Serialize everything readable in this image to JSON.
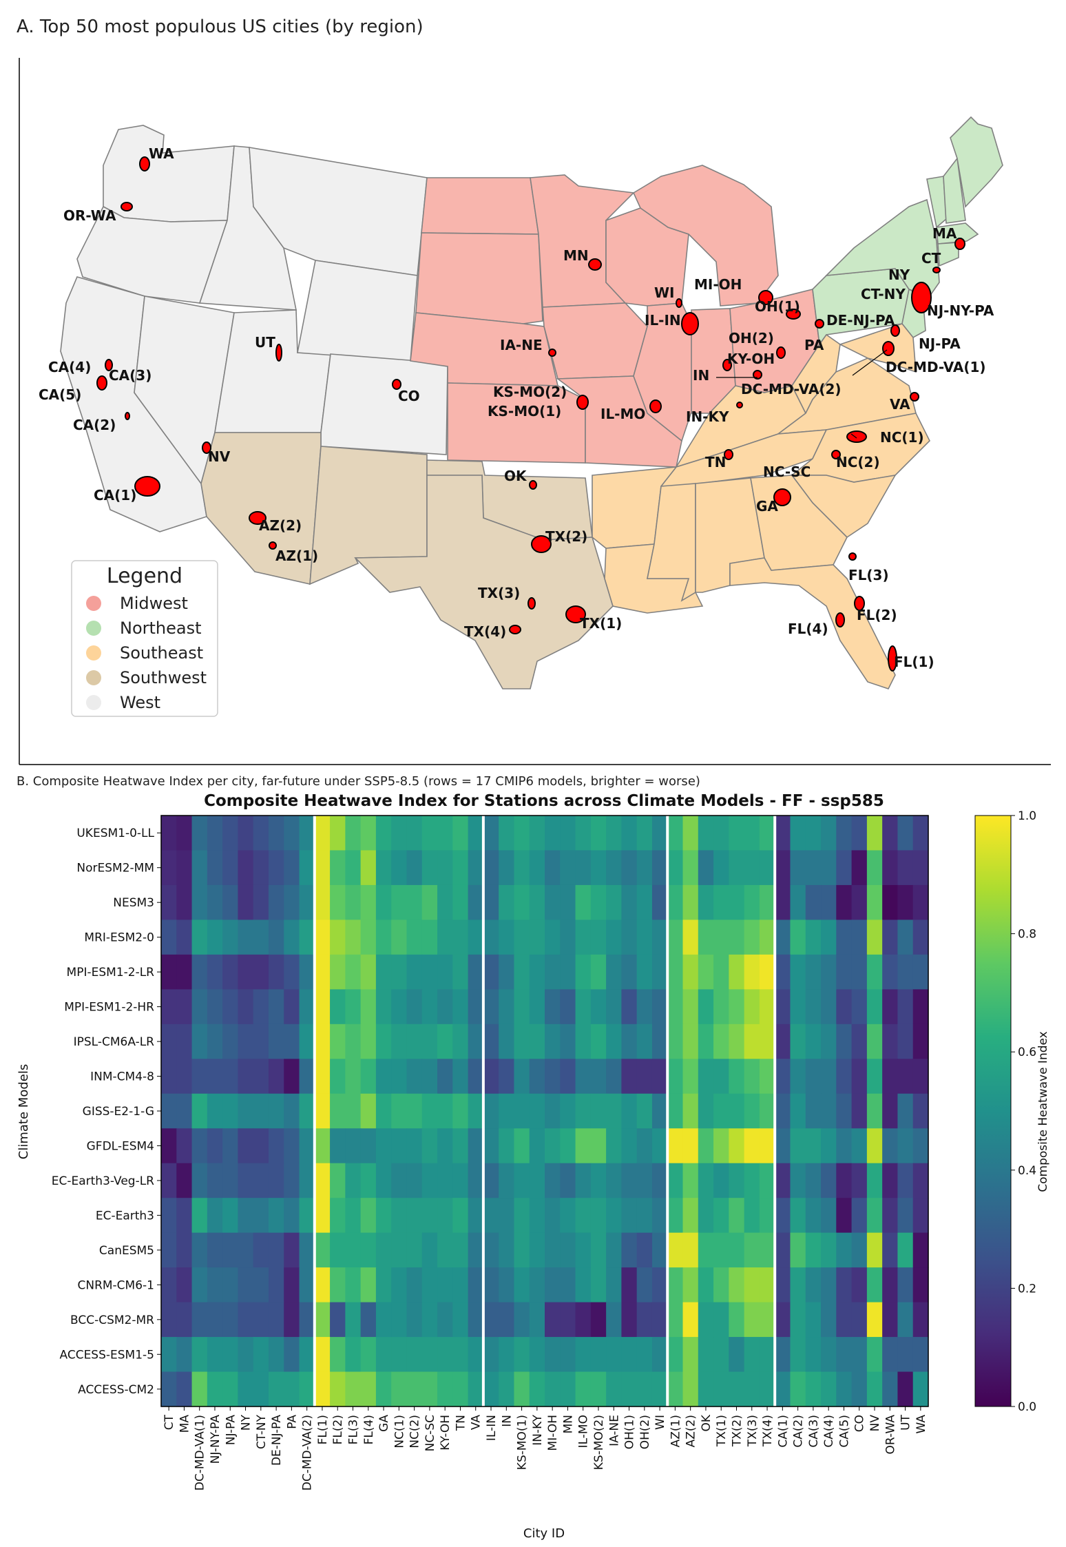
{
  "panel_a": {
    "title": "A. Top 50 most populous US cities (by region)",
    "legend": {
      "title": "Legend",
      "items": [
        {
          "label": "Midwest",
          "color": "#f4a09a"
        },
        {
          "label": "Northeast",
          "color": "#b5e0b0"
        },
        {
          "label": "Southeast",
          "color": "#fdd49a"
        },
        {
          "label": "Southwest",
          "color": "#dcc9a6"
        },
        {
          "label": "West",
          "color": "#ececec"
        }
      ]
    },
    "region_colors": {
      "Midwest": "#f8b5ad",
      "Northeast": "#cbe8c6",
      "Southeast": "#fdd9a6",
      "Southwest": "#e4d5bb",
      "West": "#f0f0f0"
    },
    "city_color": "#ff0000",
    "city_labels": [
      "WA",
      "OR-WA",
      "UT",
      "CA(4)",
      "CA(3)",
      "CA(5)",
      "CA(2)",
      "NV",
      "CA(1)",
      "AZ(2)",
      "AZ(1)",
      "CO",
      "MN",
      "WI",
      "MI-OH",
      "IL-IN",
      "IA-NE",
      "KS-MO(2)",
      "KS-MO(1)",
      "IL-MO",
      "OH(1)",
      "OH(2)",
      "KY-OH",
      "IN",
      "DC-MD-VA(2)",
      "IN-KY",
      "PA",
      "DE-NJ-PA",
      "MA",
      "CT",
      "NY",
      "CT-NY",
      "NJ-NY-PA",
      "NJ-PA",
      "DC-MD-VA(1)",
      "VA",
      "NC(1)",
      "NC(2)",
      "TN",
      "NC-SC",
      "GA",
      "OK",
      "TX(2)",
      "TX(3)",
      "TX(4)",
      "TX(1)",
      "FL(3)",
      "FL(2)",
      "FL(4)",
      "FL(1)"
    ]
  },
  "panel_b": {
    "caption": "B. Composite Heatwave Index per city, far-future under SSP5-8.5 (rows = 17 CMIP6 models, brighter = worse)"
  },
  "chart_data": {
    "type": "heatmap",
    "title": "Composite Heatwave Index for Stations across Climate Models - FF - ssp585",
    "xlabel": "City ID",
    "ylabel": "Climate Models",
    "colorbar": {
      "label": "Composite Heatwave Index",
      "range": [
        0.0,
        1.0
      ],
      "ticks": [
        "0.0",
        "0.2",
        "0.4",
        "0.6",
        "0.8",
        "1.0"
      ],
      "colormap": "viridis"
    },
    "rows": [
      "UKESM1-0-LL",
      "NorESM2-MM",
      "NESM3",
      "MRI-ESM2-0",
      "MPI-ESM1-2-LR",
      "MPI-ESM1-2-HR",
      "IPSL-CM6A-LR",
      "INM-CM4-8",
      "GISS-E2-1-G",
      "GFDL-ESM4",
      "EC-Earth3-Veg-LR",
      "EC-Earth3",
      "CanESM5",
      "CNRM-CM6-1",
      "BCC-CSM2-MR",
      "ACCESS-ESM1-5",
      "ACCESS-CM2"
    ],
    "columns": [
      "CT",
      "MA",
      "DC-MD-VA(1)",
      "NJ-NY-PA",
      "NJ-PA",
      "NY",
      "CT-NY",
      "DE-NJ-PA",
      "PA",
      "DC-MD-VA(2)",
      "FL(1)",
      "FL(2)",
      "FL(3)",
      "FL(4)",
      "GA",
      "NC(1)",
      "NC(2)",
      "NC-SC",
      "KY-OH",
      "TN",
      "VA",
      "IL-IN",
      "IN",
      "KS-MO(1)",
      "IN-KY",
      "MI-OH",
      "MN",
      "IL-MO",
      "KS-MO(2)",
      "IA-NE",
      "OH(1)",
      "OH(2)",
      "WI",
      "AZ(1)",
      "AZ(2)",
      "OK",
      "TX(1)",
      "TX(2)",
      "TX(3)",
      "TX(4)",
      "CA(1)",
      "CA(2)",
      "CA(3)",
      "CA(4)",
      "CA(5)",
      "CO",
      "NV",
      "OR-WA",
      "UT",
      "WA"
    ],
    "region_separators_after_columns": [
      9,
      20,
      32,
      39
    ],
    "values": [
      [
        0.1,
        0.08,
        0.35,
        0.3,
        0.25,
        0.2,
        0.25,
        0.3,
        0.35,
        0.45,
        0.95,
        0.85,
        0.7,
        0.75,
        0.6,
        0.55,
        0.55,
        0.6,
        0.6,
        0.65,
        0.5,
        0.4,
        0.55,
        0.6,
        0.55,
        0.5,
        0.5,
        0.55,
        0.6,
        0.55,
        0.5,
        0.55,
        0.45,
        0.65,
        0.8,
        0.55,
        0.55,
        0.6,
        0.6,
        0.65,
        0.15,
        0.5,
        0.5,
        0.45,
        0.3,
        0.25,
        0.85,
        0.15,
        0.3,
        0.2
      ],
      [
        0.12,
        0.1,
        0.4,
        0.3,
        0.25,
        0.15,
        0.2,
        0.25,
        0.3,
        0.5,
        0.95,
        0.7,
        0.65,
        0.85,
        0.55,
        0.5,
        0.45,
        0.55,
        0.55,
        0.6,
        0.45,
        0.35,
        0.45,
        0.55,
        0.5,
        0.4,
        0.45,
        0.45,
        0.5,
        0.45,
        0.4,
        0.45,
        0.35,
        0.6,
        0.75,
        0.4,
        0.5,
        0.55,
        0.55,
        0.55,
        0.1,
        0.4,
        0.4,
        0.4,
        0.25,
        0.05,
        0.7,
        0.1,
        0.15,
        0.15
      ],
      [
        0.15,
        0.1,
        0.4,
        0.35,
        0.3,
        0.15,
        0.2,
        0.3,
        0.35,
        0.45,
        0.95,
        0.75,
        0.7,
        0.75,
        0.6,
        0.65,
        0.65,
        0.7,
        0.55,
        0.6,
        0.4,
        0.35,
        0.55,
        0.6,
        0.55,
        0.45,
        0.45,
        0.65,
        0.6,
        0.55,
        0.45,
        0.5,
        0.3,
        0.65,
        0.8,
        0.55,
        0.6,
        0.6,
        0.65,
        0.7,
        0.1,
        0.45,
        0.3,
        0.3,
        0.05,
        0.1,
        0.75,
        0.02,
        0.05,
        0.1
      ],
      [
        0.25,
        0.2,
        0.55,
        0.5,
        0.45,
        0.4,
        0.4,
        0.35,
        0.45,
        0.55,
        0.98,
        0.85,
        0.8,
        0.75,
        0.65,
        0.7,
        0.65,
        0.65,
        0.55,
        0.55,
        0.5,
        0.45,
        0.5,
        0.55,
        0.55,
        0.5,
        0.45,
        0.55,
        0.55,
        0.5,
        0.45,
        0.5,
        0.45,
        0.7,
        0.95,
        0.7,
        0.7,
        0.7,
        0.75,
        0.8,
        0.35,
        0.65,
        0.55,
        0.5,
        0.3,
        0.3,
        0.85,
        0.2,
        0.35,
        0.2
      ],
      [
        0.05,
        0.05,
        0.3,
        0.25,
        0.2,
        0.15,
        0.15,
        0.2,
        0.25,
        0.4,
        0.98,
        0.8,
        0.75,
        0.8,
        0.55,
        0.55,
        0.5,
        0.5,
        0.5,
        0.55,
        0.35,
        0.3,
        0.4,
        0.55,
        0.5,
        0.45,
        0.45,
        0.6,
        0.65,
        0.45,
        0.4,
        0.5,
        0.45,
        0.7,
        0.85,
        0.75,
        0.7,
        0.85,
        0.95,
        0.98,
        0.25,
        0.5,
        0.45,
        0.4,
        0.3,
        0.3,
        0.65,
        0.25,
        0.3,
        0.3
      ],
      [
        0.15,
        0.15,
        0.35,
        0.3,
        0.25,
        0.2,
        0.25,
        0.3,
        0.2,
        0.45,
        0.98,
        0.6,
        0.65,
        0.75,
        0.55,
        0.5,
        0.45,
        0.5,
        0.45,
        0.5,
        0.35,
        0.35,
        0.45,
        0.55,
        0.5,
        0.35,
        0.3,
        0.55,
        0.5,
        0.45,
        0.25,
        0.4,
        0.35,
        0.7,
        0.8,
        0.6,
        0.7,
        0.75,
        0.85,
        0.9,
        0.2,
        0.5,
        0.45,
        0.4,
        0.2,
        0.25,
        0.6,
        0.1,
        0.2,
        0.05
      ],
      [
        0.2,
        0.2,
        0.4,
        0.35,
        0.3,
        0.25,
        0.25,
        0.3,
        0.3,
        0.5,
        0.98,
        0.75,
        0.7,
        0.75,
        0.6,
        0.55,
        0.55,
        0.55,
        0.6,
        0.55,
        0.4,
        0.3,
        0.45,
        0.55,
        0.55,
        0.45,
        0.4,
        0.55,
        0.6,
        0.5,
        0.4,
        0.45,
        0.35,
        0.7,
        0.8,
        0.65,
        0.75,
        0.8,
        0.9,
        0.9,
        0.15,
        0.55,
        0.5,
        0.45,
        0.3,
        0.2,
        0.7,
        0.15,
        0.2,
        0.05
      ],
      [
        0.2,
        0.2,
        0.25,
        0.25,
        0.25,
        0.2,
        0.2,
        0.15,
        0.05,
        0.35,
        0.98,
        0.65,
        0.7,
        0.65,
        0.5,
        0.5,
        0.45,
        0.45,
        0.35,
        0.45,
        0.3,
        0.2,
        0.25,
        0.45,
        0.35,
        0.3,
        0.25,
        0.4,
        0.4,
        0.35,
        0.15,
        0.15,
        0.15,
        0.65,
        0.75,
        0.55,
        0.55,
        0.65,
        0.7,
        0.75,
        0.25,
        0.45,
        0.4,
        0.4,
        0.25,
        0.15,
        0.6,
        0.1,
        0.1,
        0.1
      ],
      [
        0.3,
        0.3,
        0.6,
        0.5,
        0.5,
        0.45,
        0.45,
        0.45,
        0.4,
        0.55,
        0.98,
        0.7,
        0.7,
        0.8,
        0.6,
        0.65,
        0.65,
        0.6,
        0.6,
        0.65,
        0.55,
        0.45,
        0.5,
        0.5,
        0.5,
        0.45,
        0.5,
        0.55,
        0.55,
        0.55,
        0.5,
        0.55,
        0.4,
        0.65,
        0.8,
        0.55,
        0.6,
        0.6,
        0.65,
        0.7,
        0.3,
        0.5,
        0.4,
        0.4,
        0.3,
        0.15,
        0.7,
        0.1,
        0.35,
        0.2
      ],
      [
        0.05,
        0.15,
        0.3,
        0.25,
        0.3,
        0.2,
        0.2,
        0.25,
        0.3,
        0.45,
        0.8,
        0.45,
        0.45,
        0.45,
        0.5,
        0.5,
        0.5,
        0.55,
        0.5,
        0.55,
        0.4,
        0.45,
        0.55,
        0.65,
        0.5,
        0.55,
        0.6,
        0.75,
        0.75,
        0.55,
        0.5,
        0.45,
        0.5,
        0.98,
        0.98,
        0.7,
        0.8,
        0.9,
        0.98,
        0.98,
        0.35,
        0.55,
        0.55,
        0.5,
        0.4,
        0.45,
        0.9,
        0.35,
        0.4,
        0.35
      ],
      [
        0.15,
        0.05,
        0.35,
        0.3,
        0.3,
        0.25,
        0.25,
        0.25,
        0.3,
        0.45,
        0.98,
        0.7,
        0.55,
        0.6,
        0.5,
        0.45,
        0.45,
        0.5,
        0.5,
        0.5,
        0.4,
        0.35,
        0.45,
        0.5,
        0.5,
        0.4,
        0.35,
        0.45,
        0.5,
        0.45,
        0.4,
        0.4,
        0.35,
        0.6,
        0.75,
        0.55,
        0.5,
        0.55,
        0.6,
        0.65,
        0.15,
        0.45,
        0.4,
        0.3,
        0.1,
        0.15,
        0.6,
        0.1,
        0.25,
        0.15
      ],
      [
        0.25,
        0.2,
        0.6,
        0.45,
        0.5,
        0.4,
        0.4,
        0.45,
        0.4,
        0.55,
        0.98,
        0.65,
        0.6,
        0.7,
        0.6,
        0.55,
        0.55,
        0.55,
        0.55,
        0.6,
        0.45,
        0.45,
        0.45,
        0.55,
        0.5,
        0.45,
        0.5,
        0.55,
        0.55,
        0.5,
        0.45,
        0.45,
        0.4,
        0.65,
        0.8,
        0.55,
        0.6,
        0.7,
        0.6,
        0.65,
        0.25,
        0.55,
        0.45,
        0.4,
        0.05,
        0.25,
        0.65,
        0.15,
        0.3,
        0.15
      ],
      [
        0.25,
        0.2,
        0.35,
        0.3,
        0.3,
        0.3,
        0.25,
        0.25,
        0.15,
        0.4,
        0.7,
        0.6,
        0.6,
        0.6,
        0.55,
        0.55,
        0.55,
        0.5,
        0.55,
        0.55,
        0.4,
        0.4,
        0.45,
        0.55,
        0.5,
        0.45,
        0.45,
        0.5,
        0.55,
        0.45,
        0.3,
        0.25,
        0.35,
        0.95,
        0.95,
        0.65,
        0.65,
        0.65,
        0.7,
        0.7,
        0.2,
        0.7,
        0.6,
        0.55,
        0.45,
        0.4,
        0.9,
        0.2,
        0.6,
        0.05
      ],
      [
        0.2,
        0.15,
        0.4,
        0.35,
        0.35,
        0.3,
        0.3,
        0.25,
        0.1,
        0.4,
        0.98,
        0.7,
        0.65,
        0.75,
        0.55,
        0.5,
        0.45,
        0.5,
        0.5,
        0.5,
        0.35,
        0.35,
        0.4,
        0.5,
        0.45,
        0.4,
        0.4,
        0.5,
        0.55,
        0.45,
        0.1,
        0.3,
        0.25,
        0.7,
        0.8,
        0.6,
        0.7,
        0.8,
        0.85,
        0.85,
        0.2,
        0.55,
        0.45,
        0.4,
        0.2,
        0.15,
        0.65,
        0.1,
        0.3,
        0.05
      ],
      [
        0.2,
        0.2,
        0.3,
        0.3,
        0.3,
        0.25,
        0.25,
        0.25,
        0.1,
        0.3,
        0.8,
        0.25,
        0.55,
        0.3,
        0.5,
        0.5,
        0.45,
        0.5,
        0.45,
        0.5,
        0.35,
        0.3,
        0.3,
        0.4,
        0.45,
        0.15,
        0.15,
        0.1,
        0.05,
        0.4,
        0.1,
        0.2,
        0.2,
        0.7,
        0.98,
        0.55,
        0.55,
        0.7,
        0.8,
        0.8,
        0.15,
        0.55,
        0.5,
        0.4,
        0.2,
        0.2,
        0.98,
        0.1,
        0.4,
        0.1
      ],
      [
        0.45,
        0.4,
        0.55,
        0.5,
        0.5,
        0.45,
        0.5,
        0.45,
        0.35,
        0.5,
        0.98,
        0.7,
        0.6,
        0.65,
        0.55,
        0.55,
        0.55,
        0.55,
        0.55,
        0.55,
        0.5,
        0.45,
        0.5,
        0.55,
        0.5,
        0.45,
        0.45,
        0.5,
        0.5,
        0.5,
        0.5,
        0.5,
        0.45,
        0.65,
        0.8,
        0.55,
        0.55,
        0.45,
        0.55,
        0.55,
        0.35,
        0.55,
        0.5,
        0.45,
        0.4,
        0.4,
        0.65,
        0.3,
        0.3,
        0.3
      ],
      [
        0.3,
        0.25,
        0.75,
        0.6,
        0.6,
        0.5,
        0.5,
        0.55,
        0.55,
        0.6,
        0.98,
        0.85,
        0.8,
        0.8,
        0.65,
        0.7,
        0.7,
        0.7,
        0.65,
        0.65,
        0.55,
        0.5,
        0.55,
        0.7,
        0.6,
        0.55,
        0.55,
        0.65,
        0.65,
        0.55,
        0.55,
        0.55,
        0.55,
        0.7,
        0.8,
        0.55,
        0.55,
        0.55,
        0.55,
        0.55,
        0.45,
        0.65,
        0.6,
        0.55,
        0.45,
        0.4,
        0.6,
        0.35,
        0.05,
        0.5
      ]
    ]
  }
}
